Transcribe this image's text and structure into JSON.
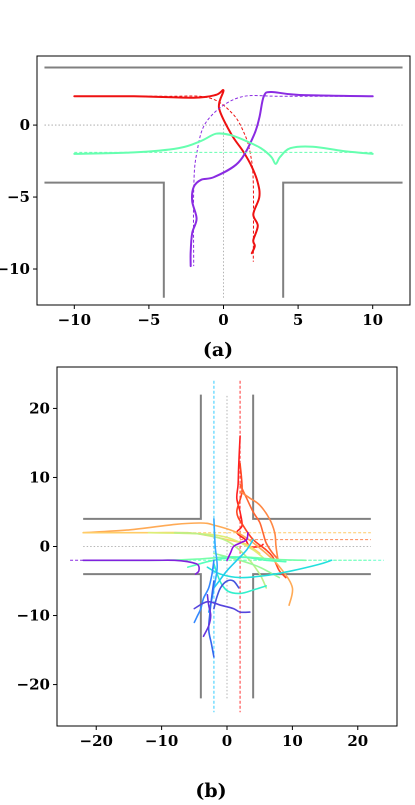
{
  "chart_data": [
    {
      "type": "line",
      "panel_label": "(a)",
      "xlim": [
        -12.5,
        12.5
      ],
      "ylim": [
        -12.5,
        4.8
      ],
      "xticks": [
        -10,
        -5,
        0,
        5,
        10
      ],
      "yticks": [
        -10,
        -5,
        0
      ],
      "grid": false,
      "road_color": "#808080",
      "road_edges": [
        {
          "x": [
            -12,
            12
          ],
          "y": [
            4,
            4
          ]
        },
        {
          "x": [
            -12,
            -4,
            -4
          ],
          "y": [
            -4,
            -4,
            -12
          ]
        },
        {
          "x": [
            4,
            4,
            12
          ],
          "y": [
            -12,
            -4,
            -4
          ]
        }
      ],
      "center_lines": [
        {
          "x": [
            -12,
            12
          ],
          "y": [
            0,
            0
          ]
        },
        {
          "x": [
            0,
            0
          ],
          "y": [
            -12,
            0
          ]
        }
      ],
      "series": [
        {
          "color": "#ee1111",
          "x": [
            -10,
            -6,
            -2,
            -0.5,
            0,
            -0.3,
            0.5,
            1.3,
            1.9,
            2.3,
            2.4,
            2.0,
            2.3,
            2.0,
            2.1,
            1.9
          ],
          "y": [
            2,
            2,
            1.9,
            2.1,
            2.4,
            1.2,
            -0.6,
            -1.8,
            -2.9,
            -4.0,
            -5.0,
            -6.2,
            -7.0,
            -8.0,
            -8.4,
            -8.9
          ],
          "ref_x": [
            -10,
            -4,
            -1,
            0.6,
            1.4,
            1.8,
            2.0,
            2.0
          ],
          "ref_y": [
            2,
            2,
            1.9,
            0.8,
            -0.6,
            -2.0,
            -4.0,
            -9.5
          ]
        },
        {
          "color": "#8a2be2",
          "x": [
            10,
            5,
            3.2,
            2.7,
            2.4,
            2.0,
            1.0,
            -0.6,
            -1.5,
            -2.0,
            -2.1,
            -1.8,
            -2.1,
            -2.2,
            -2.2
          ],
          "y": [
            2,
            2.1,
            2.3,
            2.0,
            0.5,
            -0.8,
            -2.6,
            -3.6,
            -3.8,
            -4.3,
            -5.3,
            -6.5,
            -7.5,
            -8.8,
            -9.8
          ],
          "ref_x": [
            10,
            4,
            1,
            -1.1,
            -1.8,
            -2.0,
            -2.0
          ],
          "ref_y": [
            2,
            2,
            1.9,
            0.3,
            -2.0,
            -4.5,
            -9.8
          ],
          "ref_dash": true
        },
        {
          "color": "#66ffb0",
          "x": [
            -10,
            -6,
            -3,
            -1.5,
            -0.5,
            0.5,
            1.5,
            2.5,
            3.2,
            3.5,
            3.8,
            4.5,
            6,
            8,
            10
          ],
          "y": [
            -2,
            -1.9,
            -1.6,
            -1.1,
            -0.6,
            -0.7,
            -1.1,
            -1.6,
            -2.2,
            -2.7,
            -2.2,
            -1.6,
            -1.5,
            -1.8,
            -2.0
          ],
          "ref_x": [
            -10,
            10
          ],
          "ref_y": [
            -1.9,
            -1.9
          ]
        }
      ]
    },
    {
      "type": "line",
      "panel_label": "(b)",
      "xlim": [
        -26,
        26
      ],
      "ylim": [
        -26,
        26
      ],
      "xticks": [
        -20,
        -10,
        0,
        10,
        20
      ],
      "yticks": [
        -20,
        -10,
        0,
        10,
        20
      ],
      "grid": false,
      "road_color": "#808080",
      "road_edges": [
        {
          "x": [
            -4,
            -4,
            -22
          ],
          "y": [
            22,
            4,
            4
          ]
        },
        {
          "x": [
            4,
            4,
            22
          ],
          "y": [
            22,
            4,
            4
          ]
        },
        {
          "x": [
            -22,
            -4,
            -4
          ],
          "y": [
            -4,
            -4,
            -22
          ]
        },
        {
          "x": [
            22,
            4,
            4
          ],
          "y": [
            -4,
            -4,
            -22
          ]
        }
      ],
      "center_lines": [
        {
          "x": [
            -22,
            22
          ],
          "y": [
            0,
            0
          ]
        },
        {
          "x": [
            0,
            0
          ],
          "y": [
            -22,
            22
          ]
        }
      ],
      "series": [
        {
          "color": "#ff2020",
          "x": [
            2,
            1.8,
            1.7,
            1.5,
            2.0,
            2.3,
            1.5,
            2.8,
            3.5,
            5,
            5.5
          ],
          "y": [
            16,
            12,
            9,
            7,
            5,
            3,
            2,
            1,
            0,
            0,
            0.3
          ]
        },
        {
          "color": "#ff4422",
          "x": [
            2,
            2.3,
            1.5,
            2.5,
            4,
            6,
            7,
            7.5,
            8,
            9
          ],
          "y": [
            12,
            8,
            5,
            3,
            1,
            -0.5,
            -1.5,
            -2.5,
            -3.5,
            -4.5
          ]
        },
        {
          "color": "#ff6633",
          "x": [
            2,
            3,
            4,
            5,
            5.5,
            6,
            7,
            8
          ],
          "y": [
            9,
            7,
            5,
            3.5,
            2,
            0.5,
            -1,
            -2
          ]
        },
        {
          "color": "#ff8844",
          "x": [
            2,
            3.5,
            5,
            6.5,
            7.3,
            7.5,
            7.8
          ],
          "y": [
            8,
            7,
            6,
            4,
            2,
            0,
            -2
          ]
        },
        {
          "color": "#ffaa55",
          "x": [
            -22,
            -15,
            -8,
            -4,
            -2,
            2,
            6,
            8.5,
            10,
            9.5
          ],
          "y": [
            2,
            2.4,
            3.2,
            3.4,
            3.1,
            1.8,
            -1.0,
            -3.5,
            -6,
            -8.5
          ]
        },
        {
          "color": "#ffcc66",
          "x": [
            -22,
            -12,
            -6,
            -3,
            0,
            3,
            5
          ],
          "y": [
            2,
            2,
            2,
            1.6,
            1.0,
            0.3,
            -1
          ]
        },
        {
          "color": "#ddee77",
          "x": [
            -12,
            -6,
            -2,
            1,
            4,
            6
          ],
          "y": [
            2,
            1.9,
            1.7,
            1.0,
            -0.5,
            -2
          ]
        },
        {
          "color": "#bbf088",
          "x": [
            -8,
            -4,
            0,
            3,
            5,
            6
          ],
          "y": [
            2,
            1.8,
            0.8,
            -1.5,
            -4,
            -6
          ]
        },
        {
          "color": "#99f899",
          "x": [
            -2,
            2,
            5,
            7,
            8
          ],
          "y": [
            -1,
            -2,
            -3,
            -4,
            -4.5
          ]
        },
        {
          "color": "#77ffaa",
          "x": [
            -22,
            -10,
            -4,
            0,
            4,
            8,
            12
          ],
          "y": [
            -2,
            -2,
            -1.8,
            -1.5,
            -1.6,
            -1.9,
            -2
          ]
        },
        {
          "color": "#55ffbb",
          "x": [
            -6,
            -3,
            -1,
            1,
            3,
            6,
            9
          ],
          "y": [
            -3,
            -2.2,
            -1.8,
            -1.6,
            -1.6,
            -2.0,
            -2.2
          ]
        },
        {
          "color": "#33f0cc",
          "x": [
            -2,
            -1.5,
            -0.8,
            0.2,
            2,
            4,
            6
          ],
          "y": [
            -2.5,
            -4,
            -5.5,
            -6.5,
            -6.8,
            -6.3,
            -5.7
          ]
        },
        {
          "color": "#22e0dd",
          "x": [
            -3,
            -1,
            2,
            6,
            10,
            14,
            16
          ],
          "y": [
            -3,
            -4,
            -4.5,
            -4.2,
            -3.5,
            -2.6,
            -2
          ]
        },
        {
          "color": "#22ccee",
          "x": [
            -2,
            -1.2,
            0,
            1.5,
            3,
            4
          ],
          "y": [
            -6,
            -5,
            -3.5,
            -2.0,
            -0.5,
            1
          ]
        },
        {
          "color": "#33aaff",
          "x": [
            -2,
            -1.8,
            -1.5,
            -2,
            -2.4,
            -2.8
          ],
          "y": [
            4,
            0,
            -3,
            -6,
            -8,
            -9.5
          ]
        },
        {
          "color": "#3388ff",
          "x": [
            -2,
            -2.3,
            -2.8,
            -3.6,
            -4,
            -4.5,
            -5
          ],
          "y": [
            -2,
            -4,
            -6,
            -7.5,
            -9,
            -10,
            -11
          ]
        },
        {
          "color": "#3366ee",
          "x": [
            -2,
            -2.3,
            -2.6,
            -2.8,
            -2.4,
            -2.0
          ],
          "y": [
            -5,
            -7,
            -9.5,
            -12,
            -14,
            -16
          ]
        },
        {
          "color": "#4455dd",
          "x": [
            -2,
            -1.6,
            -1.0,
            0,
            1,
            1.8
          ],
          "y": [
            -9,
            -7.5,
            -6,
            -5,
            -5,
            -6
          ]
        },
        {
          "color": "#5544dd",
          "x": [
            -5,
            -3,
            -1,
            1,
            2,
            3.5
          ],
          "y": [
            -9,
            -8,
            -8.5,
            -9,
            -9.5,
            -9.5
          ]
        },
        {
          "color": "#6633dd",
          "x": [
            -3,
            -2.8,
            -2.5,
            -2.8,
            -3.6
          ],
          "y": [
            -7,
            -8.5,
            -10,
            -11.5,
            -13
          ]
        },
        {
          "color": "#8022dd",
          "x": [
            -22,
            -12,
            -8,
            -6,
            -4.5,
            -4.3,
            -4.8
          ],
          "y": [
            -2,
            -2,
            -2,
            -2.2,
            -2.6,
            -3.5,
            -4
          ]
        },
        {
          "color": "#9010dd",
          "x": [
            0,
            0.5,
            1,
            2,
            3.0,
            3.2
          ],
          "y": [
            -2,
            -1,
            0,
            0.5,
            1.0,
            2.0
          ]
        }
      ],
      "ref_lines": [
        {
          "color": "#ff3333",
          "x": [
            2,
            2
          ],
          "y": [
            24,
            -24
          ]
        },
        {
          "color": "#ff8855",
          "x": [
            2,
            22
          ],
          "y": [
            1,
            1
          ]
        },
        {
          "color": "#ffcc66",
          "x": [
            -22,
            22
          ],
          "y": [
            2,
            2
          ]
        },
        {
          "color": "#99ff99",
          "x": [
            -2,
            22
          ],
          "y": [
            -2,
            -2
          ]
        },
        {
          "color": "#33ccff",
          "x": [
            -2,
            -2
          ],
          "y": [
            24,
            -24
          ]
        },
        {
          "color": "#66ffcc",
          "x": [
            -22,
            24
          ],
          "y": [
            -2,
            -2
          ]
        },
        {
          "color": "#8a2be2",
          "x": [
            -24,
            -6
          ],
          "y": [
            -2,
            -2
          ]
        }
      ]
    }
  ]
}
